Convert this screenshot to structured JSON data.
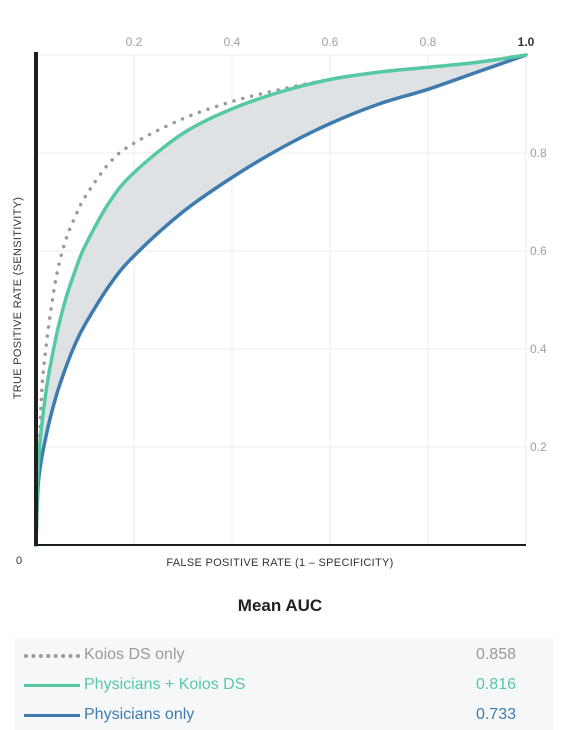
{
  "chart_data": {
    "type": "line",
    "xlabel": "FALSE POSITIVE RATE (1 – SPECIFICITY)",
    "ylabel": "TRUE POSITIVE RATE (SENSITIVITY)",
    "xlim": [
      0,
      1
    ],
    "ylim": [
      0,
      1
    ],
    "x_ticks": [
      "0.2",
      "0.4",
      "0.6",
      "0.8",
      "1.0"
    ],
    "y_ticks": [
      "0.2",
      "0.4",
      "0.6",
      "0.8"
    ],
    "origin_label": "0",
    "grid": true,
    "shaded_between": [
      "Physicians + Koios DS",
      "Physicians only"
    ],
    "series": [
      {
        "name": "Koios DS only",
        "style": "dotted",
        "color": "#9a9a9a",
        "x": [
          0,
          0.01,
          0.02,
          0.04,
          0.06,
          0.08,
          0.1,
          0.15,
          0.2,
          0.3,
          0.4,
          0.5,
          0.6,
          0.7,
          0.8,
          0.9,
          1.0
        ],
        "y": [
          0,
          0.28,
          0.4,
          0.54,
          0.62,
          0.67,
          0.71,
          0.78,
          0.82,
          0.87,
          0.905,
          0.93,
          0.95,
          0.965,
          0.975,
          0.985,
          1.0
        ]
      },
      {
        "name": "Physicians + Koios DS",
        "style": "solid",
        "color": "#56c9a4",
        "x": [
          0,
          0.005,
          0.02,
          0.04,
          0.06,
          0.08,
          0.1,
          0.15,
          0.2,
          0.3,
          0.4,
          0.5,
          0.6,
          0.7,
          0.8,
          0.9,
          1.0
        ],
        "y": [
          0,
          0.17,
          0.31,
          0.42,
          0.5,
          0.56,
          0.61,
          0.7,
          0.76,
          0.84,
          0.89,
          0.925,
          0.95,
          0.965,
          0.975,
          0.985,
          1.0
        ]
      },
      {
        "name": "Physicians only",
        "style": "solid",
        "color": "#3e7cb0",
        "x": [
          0,
          0.005,
          0.02,
          0.04,
          0.06,
          0.08,
          0.1,
          0.15,
          0.2,
          0.3,
          0.4,
          0.5,
          0.6,
          0.7,
          0.8,
          0.9,
          1.0
        ],
        "y": [
          0,
          0.13,
          0.22,
          0.3,
          0.36,
          0.41,
          0.45,
          0.53,
          0.59,
          0.68,
          0.75,
          0.81,
          0.86,
          0.9,
          0.93,
          0.965,
          1.0
        ]
      }
    ]
  },
  "auc": {
    "title": "Mean AUC",
    "items": [
      {
        "name": "Koios DS only",
        "value": "0.858",
        "color": "#9a9a9a"
      },
      {
        "name": "Physicians + Koios DS",
        "value": "0.816",
        "color": "#56c9a4"
      },
      {
        "name": "Physicians only",
        "value": "0.733",
        "color": "#3e7cb0"
      }
    ]
  }
}
